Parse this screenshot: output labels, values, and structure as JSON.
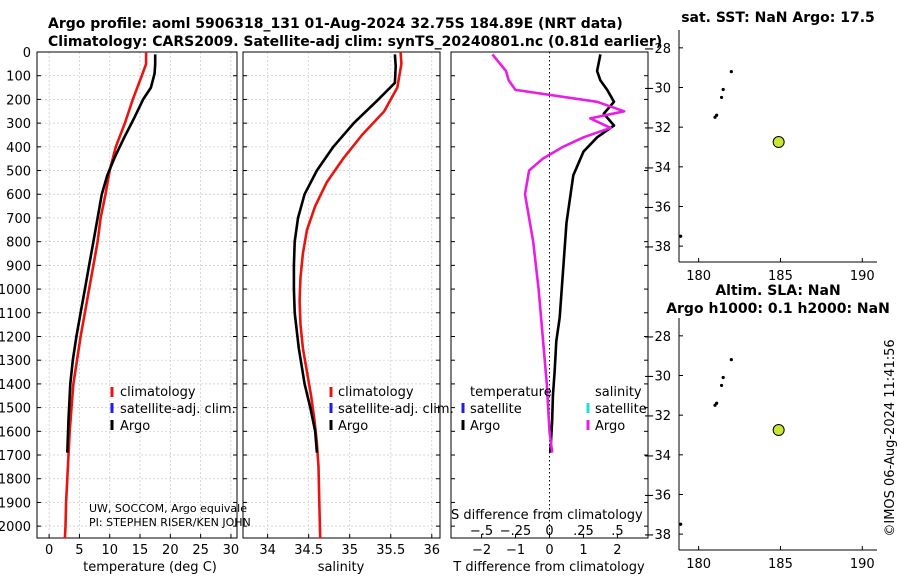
{
  "header": {
    "title_line1": "Argo profile: aoml 5906318_131 01-Aug-2024 32.75S 184.89E (NRT data)",
    "title_line2": "Climatology: CARS2009. Satellite-adj clim: synTS_20240801.nc (0.81d earlier)"
  },
  "colors": {
    "climatology": "#e8140f",
    "satellite_adj": "#1e1ee6",
    "argo": "#000000",
    "salinity_argo_diff": "#e61ee6",
    "salinity_satellite": "#22dddd",
    "float_marker": "#c8e632"
  },
  "footer_text": {
    "credit_line1": "UW, SOCCOM, Argo equivale",
    "credit_line2": "PI: STEPHEN RISER/KEN JOHN",
    "timestamp": "©IMOS 06-Aug-2024 11:41:56"
  },
  "chart_data": [
    {
      "id": "temperature",
      "type": "line",
      "xlabel": "temperature (deg C)",
      "ylabel": "",
      "xlim": [
        -2,
        31
      ],
      "ylim": [
        2050,
        0
      ],
      "xticks": [
        0,
        5,
        10,
        15,
        20,
        25,
        30
      ],
      "yticks": [
        0,
        100,
        200,
        300,
        400,
        500,
        600,
        700,
        800,
        900,
        1000,
        1100,
        1200,
        1300,
        1400,
        1500,
        1600,
        1700,
        1800,
        1900,
        2000
      ],
      "grid": true,
      "legend": [
        "climatology",
        "satellite-adj. clim.",
        "Argo"
      ],
      "legend_position": "lower-middle",
      "series": [
        {
          "name": "climatology",
          "color_key": "climatology",
          "x": [
            16.0,
            16.0,
            15.3,
            13.8,
            12.5,
            11.0,
            10.0,
            9.3,
            8.5,
            8.0,
            7.3,
            6.6,
            5.9,
            5.2,
            4.6,
            4.0,
            3.7,
            3.4,
            3.2,
            3.0,
            2.8,
            2.7,
            2.6
          ],
          "y": [
            0,
            50,
            100,
            200,
            300,
            400,
            500,
            600,
            700,
            800,
            900,
            1000,
            1100,
            1200,
            1300,
            1400,
            1500,
            1600,
            1700,
            1800,
            1900,
            2000,
            2050
          ]
        },
        {
          "name": "Argo",
          "color_key": "argo",
          "x": [
            17.5,
            17.5,
            17.4,
            17.2,
            16.8,
            15.5,
            14.0,
            12.4,
            10.9,
            9.6,
            8.7,
            8.0,
            7.3,
            6.6,
            5.9,
            5.2,
            4.5,
            3.9,
            3.5,
            3.2,
            3.0
          ],
          "y": [
            10,
            50,
            90,
            110,
            150,
            200,
            280,
            360,
            440,
            520,
            600,
            700,
            800,
            900,
            1000,
            1100,
            1200,
            1300,
            1400,
            1550,
            1690
          ]
        }
      ]
    },
    {
      "id": "salinity",
      "type": "line",
      "xlabel": "salinity",
      "ylabel": "",
      "xlim": [
        33.7,
        36.1
      ],
      "ylim": [
        2050,
        0
      ],
      "xticks": [
        34,
        34.5,
        35,
        35.5,
        36
      ],
      "grid": true,
      "legend": [
        "climatology",
        "satellite-adj. clim.",
        "Argo"
      ],
      "legend_position": "lower-right",
      "series": [
        {
          "name": "climatology",
          "color_key": "climatology",
          "x": [
            35.62,
            35.63,
            35.58,
            35.42,
            35.15,
            34.92,
            34.72,
            34.58,
            34.48,
            34.43,
            34.4,
            34.39,
            34.4,
            34.43,
            34.48,
            34.53,
            34.57,
            34.6,
            34.62,
            34.63,
            34.64
          ],
          "y": [
            0,
            50,
            150,
            250,
            350,
            450,
            550,
            650,
            750,
            850,
            950,
            1050,
            1150,
            1250,
            1350,
            1450,
            1550,
            1650,
            1750,
            1900,
            2050
          ]
        },
        {
          "name": "Argo",
          "color_key": "argo",
          "x": [
            35.55,
            35.56,
            35.55,
            35.35,
            35.05,
            34.8,
            34.6,
            34.45,
            34.37,
            34.33,
            34.32,
            34.32,
            34.33,
            34.38,
            34.45,
            34.52,
            34.58,
            34.6
          ],
          "y": [
            10,
            60,
            130,
            200,
            300,
            400,
            500,
            600,
            700,
            800,
            900,
            1000,
            1100,
            1250,
            1400,
            1500,
            1600,
            1690
          ]
        }
      ]
    },
    {
      "id": "difference",
      "type": "line",
      "xlabel": "T difference from climatology",
      "xlabel_top": "S difference from climatology",
      "ylabel": "",
      "xlim": [
        -2.9,
        2.9
      ],
      "ylim": [
        2050,
        0
      ],
      "xticks": [
        -2,
        -1,
        0,
        1,
        2
      ],
      "xticks_top": [
        -0.5,
        -0.25,
        0,
        0.25,
        0.5
      ],
      "grid": false,
      "legend": [
        "temperature",
        "satellite",
        "Argo",
        "salinity",
        "satellite",
        "Argo"
      ],
      "legend_position": "lower",
      "series": [
        {
          "name": "T Argo - climatology",
          "color_key": "argo",
          "x": [
            1.5,
            1.4,
            1.5,
            1.7,
            1.9,
            1.6,
            1.9,
            1.4,
            1.0,
            0.7,
            0.6,
            0.5,
            0.45,
            0.4,
            0.35,
            0.3,
            0.2,
            0.15,
            0.1,
            0.08,
            0.04,
            0.02
          ],
          "y": [
            10,
            80,
            120,
            160,
            210,
            260,
            310,
            360,
            420,
            520,
            620,
            720,
            820,
            920,
            1020,
            1120,
            1220,
            1350,
            1450,
            1550,
            1650,
            1690
          ]
        },
        {
          "name": "S Argo - climatology",
          "color_key": "salinity_argo_diff",
          "x": [
            -0.42,
            -0.32,
            -0.3,
            -0.25,
            0.35,
            0.55,
            0.3,
            0.45,
            0.25,
            0.1,
            -0.05,
            -0.15,
            -0.18,
            -0.12,
            -0.08,
            -0.05,
            -0.02,
            0.0,
            0.02
          ],
          "y": [
            10,
            80,
            120,
            160,
            210,
            250,
            280,
            320,
            360,
            400,
            450,
            500,
            600,
            800,
            1000,
            1200,
            1400,
            1600,
            1690
          ]
        }
      ]
    },
    {
      "id": "map_sst",
      "type": "scatter",
      "title": "sat. SST: NaN Argo: 17.5",
      "xlim": [
        178.8,
        190.9
      ],
      "ylim": [
        -38.8,
        -27.1
      ],
      "xticks": [
        180,
        185,
        190
      ],
      "yticks": [
        -38,
        -36,
        -34,
        -32,
        -30,
        -28
      ],
      "coastline_points": [
        [
          182.0,
          -29.2
        ],
        [
          181.5,
          -30.1
        ],
        [
          181.4,
          -30.5
        ],
        [
          181.1,
          -31.4
        ],
        [
          181.0,
          -31.5
        ],
        [
          178.9,
          -37.5
        ]
      ],
      "float_position": [
        184.89,
        -32.75
      ]
    },
    {
      "id": "map_sla",
      "type": "scatter",
      "title_line1": "Altim. SLA: NaN",
      "title_line2": "Argo h1000: 0.1 h2000: NaN",
      "xlim": [
        178.8,
        190.9
      ],
      "ylim": [
        -38.8,
        -27.1
      ],
      "xticks": [
        180,
        185,
        190
      ],
      "yticks": [
        -38,
        -36,
        -34,
        -32,
        -30,
        -28
      ],
      "coastline_points": [
        [
          182.0,
          -29.2
        ],
        [
          181.5,
          -30.1
        ],
        [
          181.4,
          -30.5
        ],
        [
          181.1,
          -31.4
        ],
        [
          181.0,
          -31.5
        ],
        [
          178.9,
          -37.5
        ]
      ],
      "float_position": [
        184.89,
        -32.75
      ]
    }
  ]
}
